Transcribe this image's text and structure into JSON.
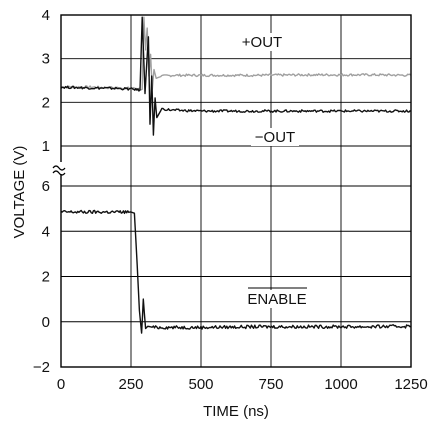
{
  "chart_data": {
    "type": "line",
    "xlabel": "TIME (ns)",
    "ylabel": "VOLTAGE (V)",
    "xlim": [
      0,
      1250
    ],
    "x_ticks": [
      "0",
      "250",
      "500",
      "750",
      "1000",
      "1250"
    ],
    "panels": [
      {
        "ylim": [
          1,
          4
        ],
        "y_ticks": [
          "1",
          "2",
          "3",
          "4"
        ],
        "series": [
          {
            "name": "+OUT",
            "color": "#a0a0a0",
            "x": [
              0,
              100,
              200,
              260,
              290,
              296,
              302,
              308,
              314,
              320,
              326,
              332,
              340,
              360,
              400,
              500,
              700,
              900,
              1100,
              1250
            ],
            "y": [
              2.35,
              2.35,
              2.33,
              2.32,
              2.3,
              3.95,
              3.2,
              3.7,
              2.6,
              3.1,
              2.3,
              2.75,
              2.55,
              2.6,
              2.62,
              2.62,
              2.62,
              2.63,
              2.63,
              2.62
            ]
          },
          {
            "name": "−OUT",
            "color": "#111111",
            "x": [
              0,
              100,
              200,
              260,
              282,
              290,
              300,
              312,
              318,
              324,
              330,
              336,
              342,
              360,
              400,
              500,
              700,
              900,
              1100,
              1250
            ],
            "y": [
              2.35,
              2.33,
              2.32,
              2.3,
              2.28,
              3.95,
              2.2,
              3.5,
              1.5,
              2.6,
              1.25,
              2.1,
              1.65,
              1.85,
              1.82,
              1.8,
              1.8,
              1.8,
              1.8,
              1.8
            ]
          }
        ]
      },
      {
        "ylim": [
          -2,
          6
        ],
        "y_ticks": [
          "−2",
          "0",
          "2",
          "4",
          "6"
        ],
        "series": [
          {
            "name": "ENABLE",
            "color": "#111111",
            "x": [
              0,
              100,
              200,
              250,
              262,
              268,
              280,
              288,
              294,
              302,
              310,
              330,
              400,
              500,
              700,
              900,
              1100,
              1250
            ],
            "y": [
              4.85,
              4.85,
              4.85,
              4.85,
              4.8,
              3.5,
              0.5,
              -0.5,
              1.0,
              -0.3,
              -0.2,
              -0.25,
              -0.25,
              -0.25,
              -0.22,
              -0.22,
              -0.22,
              -0.2
            ]
          }
        ]
      }
    ],
    "annotations": {
      "out_plus": "+OUT",
      "out_minus": "−OUT",
      "enable": "ENABLE"
    }
  }
}
